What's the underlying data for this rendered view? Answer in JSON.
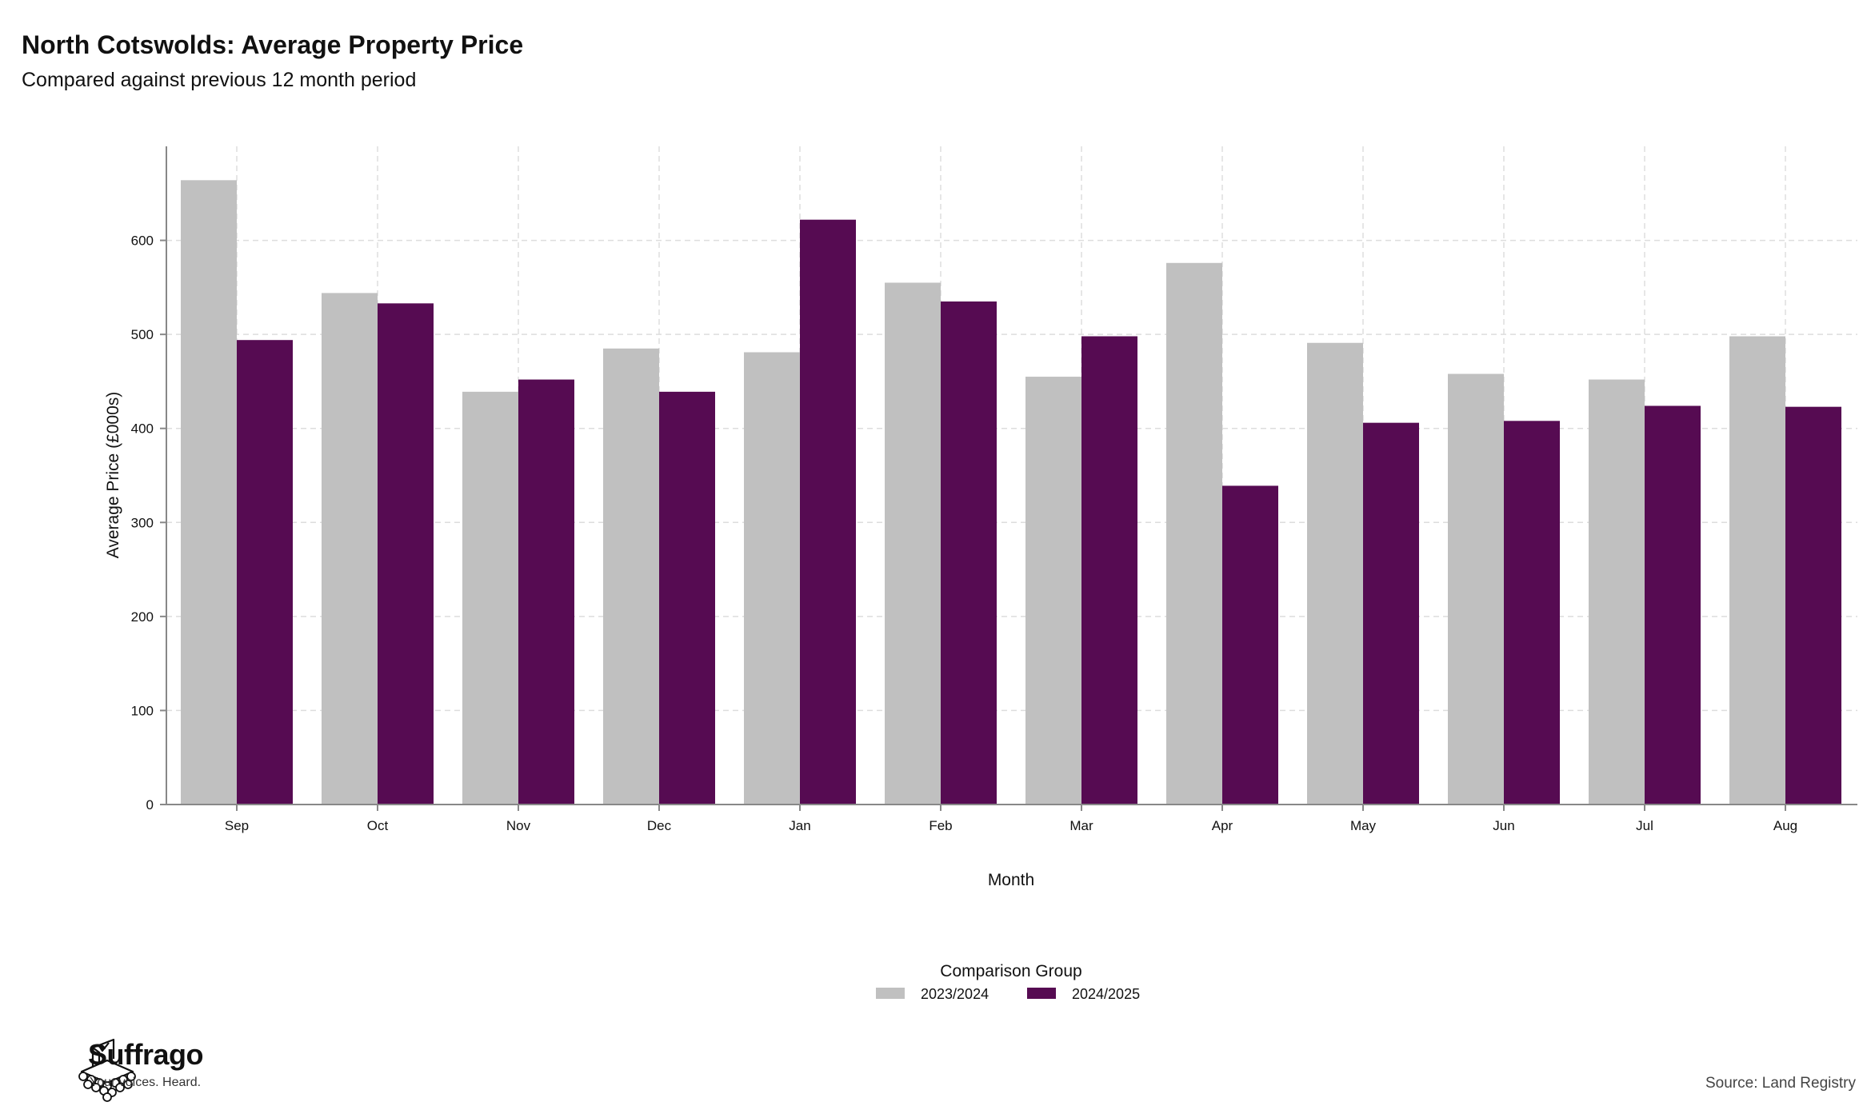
{
  "header": {
    "title": "North Cotswolds: Average Property Price",
    "subtitle": "Compared against previous 12 month period"
  },
  "footer": {
    "brand_name": "Suffrago",
    "brand_tagline": "Your voices. Heard.",
    "source": "Source: Land Registry"
  },
  "colors": {
    "series_2023_2024": "#c0c0c0",
    "series_2024_2025": "#560b52",
    "grid": "#dddddd",
    "axis": "#888888"
  },
  "chart_data": {
    "type": "bar",
    "xlabel": "Month",
    "ylabel": "Average Price (£000s)",
    "ylim": [
      0,
      700
    ],
    "yticks": [
      0,
      100,
      200,
      300,
      400,
      500,
      600
    ],
    "grid": true,
    "legend_title": "Comparison Group",
    "legend_position": "bottom",
    "categories": [
      "Sep",
      "Oct",
      "Nov",
      "Dec",
      "Jan",
      "Feb",
      "Mar",
      "Apr",
      "May",
      "Jun",
      "Jul",
      "Aug"
    ],
    "series": [
      {
        "name": "2023/2024",
        "values": [
          664,
          544,
          439,
          485,
          481,
          555,
          455,
          576,
          491,
          458,
          452,
          498
        ]
      },
      {
        "name": "2024/2025",
        "values": [
          494,
          533,
          452,
          439,
          622,
          535,
          498,
          339,
          406,
          408,
          424,
          423
        ]
      }
    ]
  }
}
